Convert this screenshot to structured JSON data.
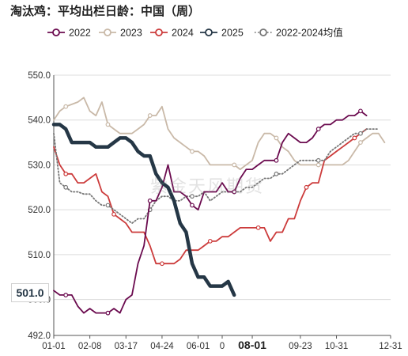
{
  "title": "淘汰鸡：平均出栏日龄：中国（周）",
  "watermark": "紫金天风期货",
  "highlight_label": "501.0",
  "chart_data": {
    "type": "line",
    "ylim": [
      492,
      550
    ],
    "y_ticks": [
      "492.0",
      "500.0",
      "510.0",
      "520.0",
      "530.0",
      "540.0",
      "550.0"
    ],
    "y_tick_values": [
      492,
      500,
      510,
      520,
      530,
      540,
      550
    ],
    "x_ticks": [
      "01-01",
      "02-08",
      "03-17",
      "04-24",
      "06-01",
      "0",
      "08-01",
      "09-23",
      "10-31",
      "12-31"
    ],
    "x_tick_positions": [
      0,
      6,
      12,
      18,
      24,
      28,
      33,
      41,
      47,
      56
    ],
    "x_tick_bold": [
      false,
      false,
      false,
      false,
      false,
      false,
      true,
      false,
      false,
      false
    ],
    "x_points": 57,
    "legend": [
      "2022",
      "2023",
      "2024",
      "2025",
      "2022-2024均值"
    ],
    "series": [
      {
        "name": "2022",
        "color": "#6b0b4f",
        "width": 1.8,
        "style": "solid",
        "marker_every": 7,
        "values": [
          502,
          501,
          501,
          501,
          498.5,
          497,
          498,
          497,
          497,
          497,
          498,
          497,
          500,
          501,
          508,
          512,
          522,
          522,
          525,
          530,
          524,
          524,
          523,
          521,
          520,
          524,
          524,
          524,
          526,
          524,
          524,
          527,
          529,
          529,
          530,
          531,
          531,
          531,
          535,
          537,
          536,
          535,
          535,
          536,
          538,
          539,
          539,
          540,
          540,
          541,
          541,
          542,
          541
        ]
      },
      {
        "name": "2023",
        "color": "#c9b9a8",
        "width": 1.8,
        "style": "solid",
        "marker_every": 7,
        "values": [
          540,
          542,
          543,
          543.5,
          544,
          545,
          542,
          541,
          544,
          539,
          538,
          537,
          537,
          537,
          538,
          539,
          541,
          541,
          543,
          538,
          536,
          535,
          534,
          533,
          533,
          532,
          530,
          530,
          530,
          530,
          530,
          529,
          530,
          531,
          535,
          537,
          537,
          536,
          534,
          533,
          531,
          530,
          530,
          530,
          530,
          530,
          530,
          530,
          530,
          531,
          533,
          535,
          536,
          537,
          537,
          535
        ]
      },
      {
        "name": "2024",
        "color": "#cc3b3b",
        "width": 1.8,
        "style": "solid",
        "marker_every": 8,
        "values": [
          534,
          530,
          528,
          528,
          526,
          526,
          527,
          528,
          524,
          523,
          519,
          518,
          517,
          515,
          515,
          515,
          512,
          508,
          508,
          508,
          508,
          509,
          511,
          511,
          511,
          512,
          513,
          513,
          514,
          514,
          515,
          516,
          516,
          516,
          516,
          516,
          513,
          515,
          515,
          518,
          518,
          522,
          525,
          526,
          526,
          531,
          532,
          533,
          534,
          535,
          536,
          537,
          538
        ]
      },
      {
        "name": "2025",
        "color": "#253746",
        "width": 4.5,
        "style": "solid",
        "marker_every": 0,
        "values": [
          539,
          539,
          538,
          535,
          535,
          535,
          535,
          534,
          534,
          534,
          535,
          536,
          536,
          535,
          533,
          532,
          532,
          528,
          526,
          525,
          522,
          517,
          515,
          508,
          505,
          505,
          503,
          503,
          503,
          504,
          501
        ]
      },
      {
        "name": "2022-2024均值",
        "color": "#777777",
        "width": 1.8,
        "style": "dotted",
        "marker_every": 7,
        "values": [
          537,
          526,
          525,
          524,
          524,
          523.5,
          523.5,
          522,
          521,
          521,
          520,
          519,
          518,
          517,
          518,
          518,
          520,
          522,
          523,
          523,
          522,
          522,
          523,
          523,
          523,
          524,
          522,
          523,
          524,
          524,
          524,
          524,
          525,
          525,
          526,
          527,
          527,
          528,
          528,
          529,
          530,
          531,
          531,
          531,
          531,
          531,
          533,
          534,
          535,
          536,
          537,
          537,
          538,
          538,
          538
        ]
      }
    ]
  }
}
